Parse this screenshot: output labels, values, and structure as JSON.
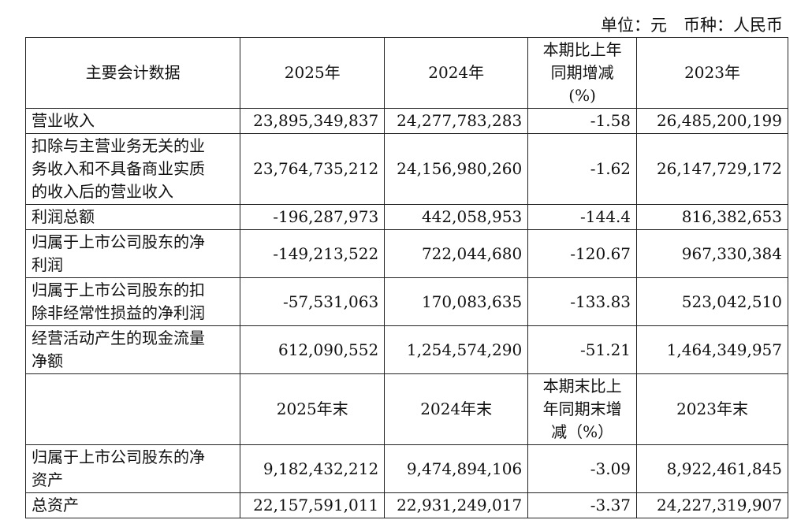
{
  "unit_note": "单位：元　币种：人民币",
  "table": {
    "header": [
      [
        "主要会计数据"
      ],
      [
        "2025年"
      ],
      [
        "2024年"
      ],
      [
        "本期比上年",
        "同期增减",
        "(%)"
      ],
      [
        "2023年"
      ]
    ],
    "rows": [
      {
        "item": [
          "营业收入"
        ],
        "values": [
          "23,895,349,837",
          "24,277,783,283",
          "-1.58",
          "26,485,200,199"
        ]
      },
      {
        "item": [
          "扣除与主营业务无关的业",
          "务收入和不具备商业实质",
          "的收入后的营业收入"
        ],
        "values": [
          "23,764,735,212",
          "24,156,980,260",
          "-1.62",
          "26,147,729,172"
        ]
      },
      {
        "item": [
          "利润总额"
        ],
        "values": [
          "-196,287,973",
          "442,058,953",
          "-144.4",
          "816,382,653"
        ]
      },
      {
        "item": [
          "归属于上市公司股东的净",
          "利润"
        ],
        "values": [
          "-149,213,522",
          "722,044,680",
          "-120.67",
          "967,330,384"
        ]
      },
      {
        "item": [
          "归属于上市公司股东的扣",
          "除非经常性损益的净利润"
        ],
        "values": [
          "-57,531,063",
          "170,083,635",
          "-133.83",
          "523,042,510"
        ]
      },
      {
        "item": [
          "经营活动产生的现金流量",
          "净额"
        ],
        "values": [
          "612,090,552",
          "1,254,574,290",
          "-51.21",
          "1,464,349,957"
        ]
      }
    ],
    "header2": [
      [
        "2025年末"
      ],
      [
        "2024年末"
      ],
      [
        "本期末比上",
        "年同期末增",
        "减（%）"
      ],
      [
        "2023年末"
      ]
    ],
    "rows2": [
      {
        "item": [
          "归属于上市公司股东的净",
          "资产"
        ],
        "values": [
          "9,182,432,212",
          "9,474,894,106",
          "-3.09",
          "8,922,461,845"
        ]
      },
      {
        "item": [
          "总资产"
        ],
        "values": [
          "22,157,591,011",
          "22,931,249,017",
          "-3.37",
          "24,227,319,907"
        ]
      }
    ]
  }
}
